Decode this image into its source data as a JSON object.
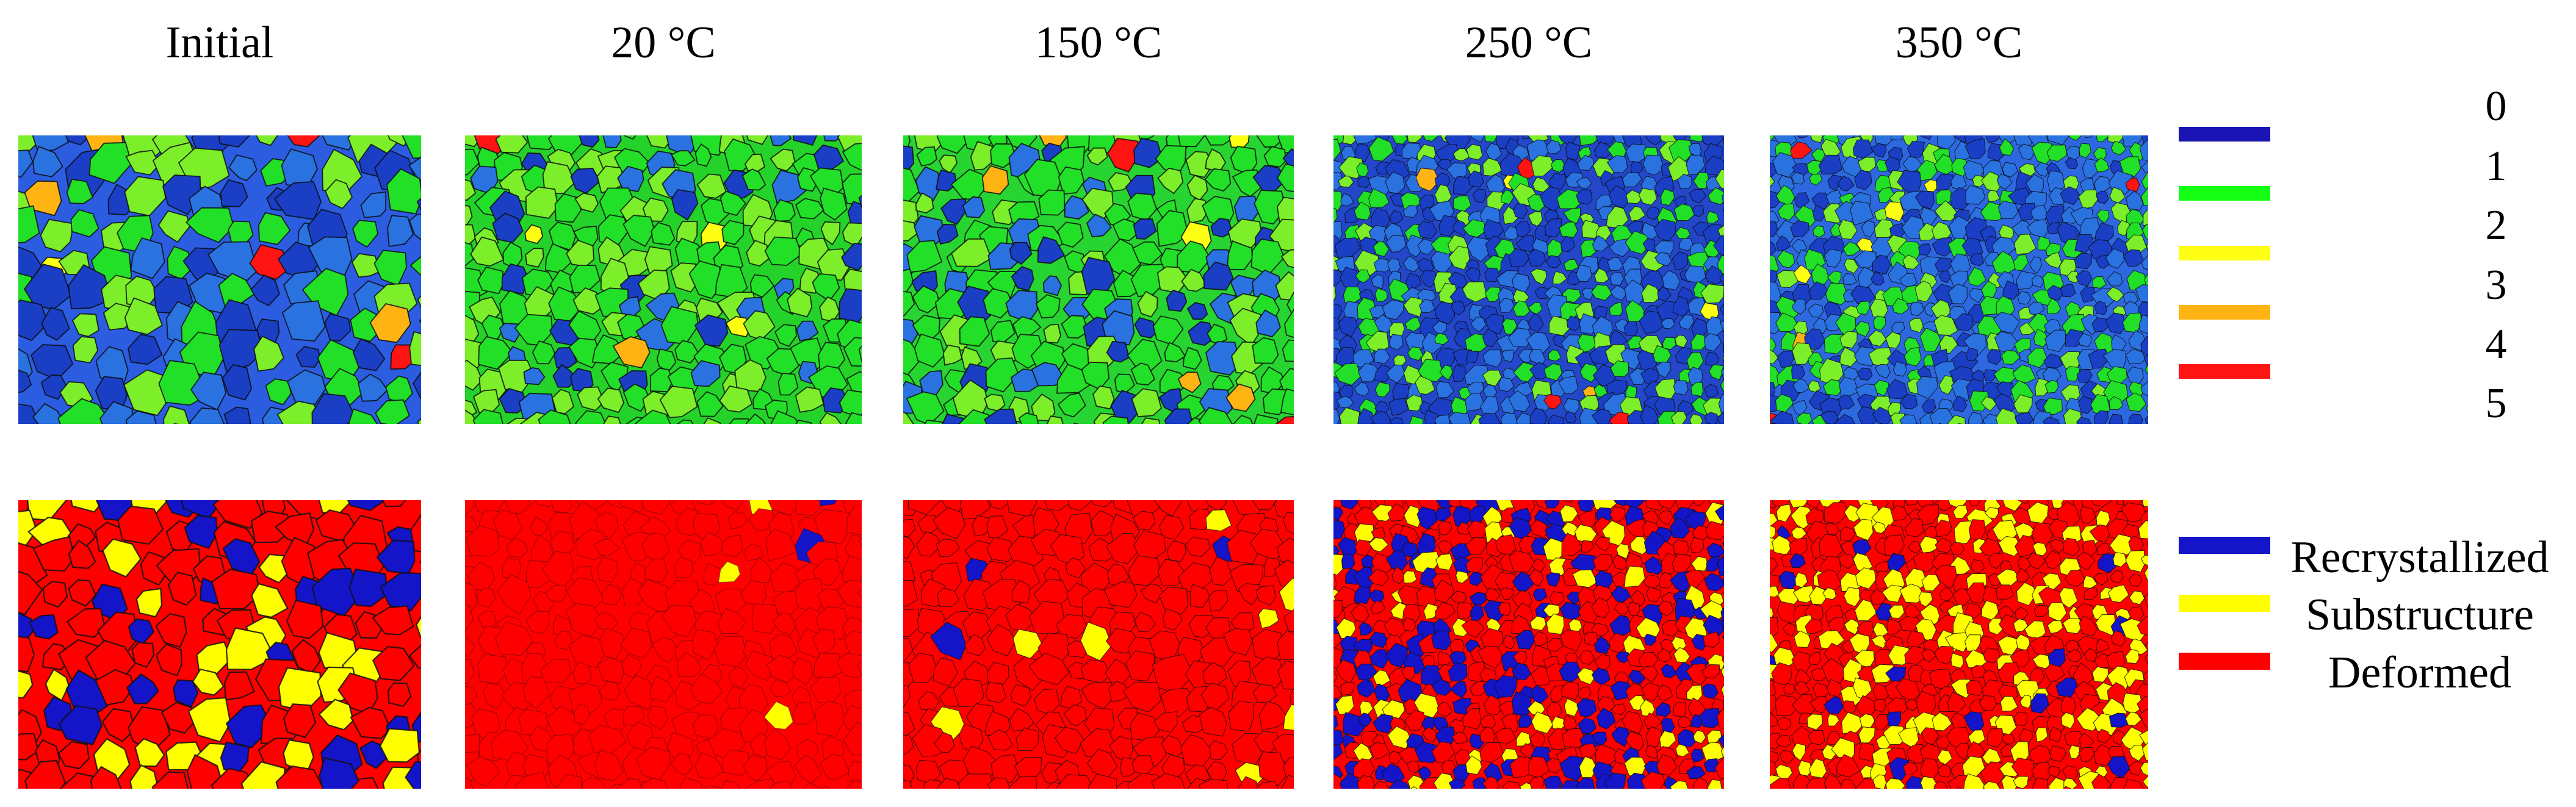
{
  "columns": [
    {
      "title": "Initial"
    },
    {
      "title": "20 °C"
    },
    {
      "title": "150 °C"
    },
    {
      "title": "250 °C"
    },
    {
      "title": "350 °C"
    }
  ],
  "kam_legend": {
    "items": [
      {
        "label": "0",
        "color": "#1a14b4"
      },
      {
        "label": "1",
        "color": "#14ff14"
      },
      {
        "label": "2",
        "color": "#ffff14"
      },
      {
        "label": "3",
        "color": "#ffb414"
      },
      {
        "label": "4",
        "color": "#ff1414"
      },
      {
        "label": "5",
        "color": ""
      }
    ]
  },
  "grain_legend": {
    "items": [
      {
        "label": "Recrystallized",
        "color": "#1414c8"
      },
      {
        "label": "Substructure",
        "color": "#ffff00"
      },
      {
        "label": "Deformed",
        "color": "#ff0000"
      }
    ]
  },
  "kam_maps": [
    {
      "name": "Initial",
      "base": "#2c5de0",
      "mix": [
        0.55,
        0.42,
        0.03
      ]
    },
    {
      "name": "20 °C",
      "base": "#25d22a",
      "mix": [
        0.22,
        0.74,
        0.04
      ]
    },
    {
      "name": "150 °C",
      "base": "#28d432",
      "mix": [
        0.25,
        0.71,
        0.04
      ]
    },
    {
      "name": "250 °C",
      "base": "#2347c8",
      "mix": [
        0.62,
        0.36,
        0.02
      ]
    },
    {
      "name": "350 °C",
      "base": "#2e68e0",
      "mix": [
        0.55,
        0.44,
        0.01
      ]
    }
  ],
  "grain_maps": [
    {
      "name": "Initial",
      "mix": [
        0.22,
        0.22,
        0.56
      ]
    },
    {
      "name": "20 °C",
      "mix": [
        0.01,
        0.02,
        0.97
      ]
    },
    {
      "name": "150 °C",
      "mix": [
        0.02,
        0.05,
        0.93
      ]
    },
    {
      "name": "250 °C",
      "mix": [
        0.34,
        0.16,
        0.5
      ]
    },
    {
      "name": "350 °C",
      "mix": [
        0.05,
        0.38,
        0.57
      ]
    }
  ]
}
